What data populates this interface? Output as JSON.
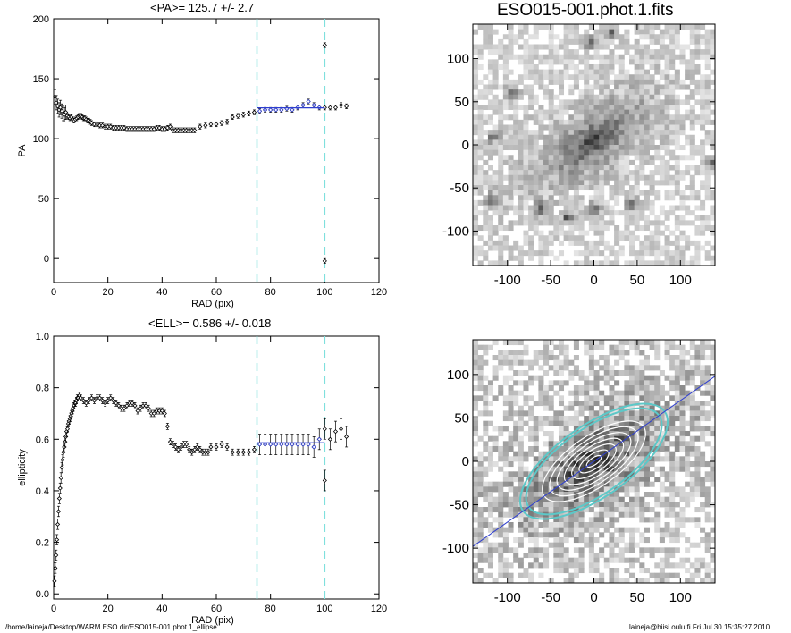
{
  "footer": {
    "left": "/home/laineja/Desktop/WARM.ESO.dir/ESO015-001.phot.1_ellipse",
    "right": "laineja@hiisi.oulu.fi  Fri Jul 30 15:35:27 2010"
  },
  "colors": {
    "fit_line": "#2f3fd0",
    "cyan_marker": "#7fe0dd",
    "contour_cyan": "#5cc8c8",
    "data": "#000000"
  },
  "chart_data": [
    {
      "type": "scatter",
      "id": "pa",
      "title": "<PA>= 125.7 +/-   2.7",
      "xlabel": "RAD (pix)",
      "ylabel": "PA",
      "xlim": [
        0,
        120
      ],
      "ylim": [
        -20,
        200
      ],
      "xticks": [
        0,
        20,
        40,
        60,
        80,
        100,
        120
      ],
      "yticks": [
        0,
        50,
        100,
        150,
        200
      ],
      "vlines": [
        75,
        100
      ],
      "fit": {
        "x": [
          75,
          100
        ],
        "y": [
          125.7,
          125.7
        ]
      },
      "points": [
        [
          0.5,
          135
        ],
        [
          1.0,
          130
        ],
        [
          1.5,
          127
        ],
        [
          2.0,
          124
        ],
        [
          2.5,
          126
        ],
        [
          3.0,
          123
        ],
        [
          3.5,
          121
        ],
        [
          4.0,
          120
        ],
        [
          4.5,
          122
        ],
        [
          5.0,
          119
        ],
        [
          5.5,
          118
        ],
        [
          6.0,
          117
        ],
        [
          6.5,
          118
        ],
        [
          7.0,
          116
        ],
        [
          7.5,
          115
        ],
        [
          8.0,
          116
        ],
        [
          8.5,
          117
        ],
        [
          9.0,
          118
        ],
        [
          9.5,
          119
        ],
        [
          10.0,
          119
        ],
        [
          10.5,
          118
        ],
        [
          11.0,
          117
        ],
        [
          11.5,
          117
        ],
        [
          12.0,
          116
        ],
        [
          12.5,
          115
        ],
        [
          13.0,
          115
        ],
        [
          13.5,
          114
        ],
        [
          14.0,
          113
        ],
        [
          15,
          112
        ],
        [
          16,
          112
        ],
        [
          17,
          111
        ],
        [
          18,
          111
        ],
        [
          19,
          110
        ],
        [
          20,
          110
        ],
        [
          21,
          110
        ],
        [
          22,
          109
        ],
        [
          23,
          109
        ],
        [
          24,
          109
        ],
        [
          25,
          109
        ],
        [
          26,
          109
        ],
        [
          27,
          108
        ],
        [
          28,
          108
        ],
        [
          29,
          108
        ],
        [
          30,
          108
        ],
        [
          31,
          108
        ],
        [
          32,
          108
        ],
        [
          33,
          108
        ],
        [
          34,
          108
        ],
        [
          35,
          108
        ],
        [
          36,
          108
        ],
        [
          37,
          108
        ],
        [
          38,
          109
        ],
        [
          39,
          109
        ],
        [
          40,
          108
        ],
        [
          41,
          108
        ],
        [
          42,
          109
        ],
        [
          43,
          110
        ],
        [
          44,
          107
        ],
        [
          45,
          107
        ],
        [
          46,
          107
        ],
        [
          47,
          107
        ],
        [
          48,
          107
        ],
        [
          49,
          107
        ],
        [
          50,
          107
        ],
        [
          51,
          107
        ],
        [
          52,
          107
        ],
        [
          54,
          110
        ],
        [
          56,
          111
        ],
        [
          58,
          112
        ],
        [
          60,
          112
        ],
        [
          62,
          113
        ],
        [
          64,
          114
        ],
        [
          66,
          118
        ],
        [
          68,
          119
        ],
        [
          70,
          120
        ],
        [
          72,
          121
        ],
        [
          74,
          122
        ],
        [
          76,
          123
        ],
        [
          78,
          124
        ],
        [
          80,
          124
        ],
        [
          82,
          124
        ],
        [
          84,
          124
        ],
        [
          86,
          125
        ],
        [
          88,
          124
        ],
        [
          90,
          126
        ],
        [
          92,
          128
        ],
        [
          94,
          131
        ],
        [
          96,
          128
        ],
        [
          98,
          126
        ],
        [
          100,
          126
        ],
        [
          100,
          178
        ],
        [
          100,
          -2
        ],
        [
          102,
          126
        ],
        [
          104,
          126
        ],
        [
          106,
          128
        ],
        [
          108,
          127
        ]
      ],
      "fit_points": [
        [
          76,
          123
        ],
        [
          78,
          124
        ],
        [
          80,
          124
        ],
        [
          82,
          124
        ],
        [
          84,
          124
        ],
        [
          86,
          125
        ],
        [
          88,
          124
        ],
        [
          90,
          126
        ],
        [
          92,
          128
        ],
        [
          94,
          131
        ],
        [
          96,
          128
        ],
        [
          98,
          126
        ]
      ]
    },
    {
      "type": "scatter",
      "id": "ell",
      "title": "<ELL>= 0.586 +/-  0.018",
      "xlabel": "RAD (pix)",
      "ylabel": "ellipticity",
      "xlim": [
        0,
        120
      ],
      "ylim": [
        -0.02,
        1.0
      ],
      "xticks": [
        0,
        20,
        40,
        60,
        80,
        100,
        120
      ],
      "yticks": [
        0.0,
        0.2,
        0.4,
        0.6,
        0.8,
        1.0
      ],
      "vlines": [
        75,
        100
      ],
      "fit": {
        "x": [
          75,
          100
        ],
        "y": [
          0.586,
          0.586
        ]
      },
      "points": [
        [
          0.3,
          0.05
        ],
        [
          0.6,
          0.1
        ],
        [
          0.9,
          0.15
        ],
        [
          1.2,
          0.21
        ],
        [
          1.5,
          0.27
        ],
        [
          1.8,
          0.32
        ],
        [
          2.1,
          0.37
        ],
        [
          2.4,
          0.41
        ],
        [
          2.7,
          0.45
        ],
        [
          3.0,
          0.49
        ],
        [
          3.3,
          0.52
        ],
        [
          3.6,
          0.55
        ],
        [
          3.9,
          0.57
        ],
        [
          4.2,
          0.59
        ],
        [
          4.5,
          0.61
        ],
        [
          4.8,
          0.63
        ],
        [
          5.1,
          0.64
        ],
        [
          5.4,
          0.66
        ],
        [
          5.7,
          0.67
        ],
        [
          6.0,
          0.68
        ],
        [
          6.3,
          0.69
        ],
        [
          6.6,
          0.7
        ],
        [
          6.9,
          0.71
        ],
        [
          7.2,
          0.72
        ],
        [
          7.5,
          0.73
        ],
        [
          7.8,
          0.74
        ],
        [
          8.1,
          0.74
        ],
        [
          8.4,
          0.75
        ],
        [
          8.7,
          0.76
        ],
        [
          9.0,
          0.76
        ],
        [
          9.5,
          0.77
        ],
        [
          10,
          0.76
        ],
        [
          11,
          0.75
        ],
        [
          12,
          0.74
        ],
        [
          13,
          0.75
        ],
        [
          14,
          0.76
        ],
        [
          15,
          0.75
        ],
        [
          16,
          0.76
        ],
        [
          17,
          0.76
        ],
        [
          18,
          0.75
        ],
        [
          19,
          0.74
        ],
        [
          20,
          0.75
        ],
        [
          21,
          0.76
        ],
        [
          22,
          0.75
        ],
        [
          23,
          0.74
        ],
        [
          24,
          0.73
        ],
        [
          25,
          0.72
        ],
        [
          26,
          0.72
        ],
        [
          27,
          0.73
        ],
        [
          28,
          0.74
        ],
        [
          29,
          0.74
        ],
        [
          30,
          0.73
        ],
        [
          31,
          0.71
        ],
        [
          32,
          0.72
        ],
        [
          33,
          0.73
        ],
        [
          34,
          0.73
        ],
        [
          35,
          0.72
        ],
        [
          36,
          0.7
        ],
        [
          37,
          0.7
        ],
        [
          38,
          0.71
        ],
        [
          39,
          0.71
        ],
        [
          40,
          0.71
        ],
        [
          41,
          0.7
        ],
        [
          42,
          0.65
        ],
        [
          43,
          0.59
        ],
        [
          44,
          0.58
        ],
        [
          45,
          0.57
        ],
        [
          46,
          0.56
        ],
        [
          47,
          0.57
        ],
        [
          48,
          0.58
        ],
        [
          49,
          0.58
        ],
        [
          50,
          0.56
        ],
        [
          51,
          0.55
        ],
        [
          52,
          0.56
        ],
        [
          53,
          0.57
        ],
        [
          54,
          0.56
        ],
        [
          55,
          0.55
        ],
        [
          56,
          0.55
        ],
        [
          57,
          0.55
        ],
        [
          58,
          0.57
        ],
        [
          60,
          0.57
        ],
        [
          62,
          0.58
        ],
        [
          64,
          0.57
        ],
        [
          66,
          0.55
        ],
        [
          68,
          0.55
        ],
        [
          70,
          0.55
        ],
        [
          72,
          0.55
        ],
        [
          74,
          0.56
        ],
        [
          76,
          0.58
        ],
        [
          78,
          0.58
        ],
        [
          80,
          0.58
        ],
        [
          82,
          0.58
        ],
        [
          84,
          0.58
        ],
        [
          86,
          0.58
        ],
        [
          88,
          0.58
        ],
        [
          90,
          0.58
        ],
        [
          92,
          0.58
        ],
        [
          94,
          0.58
        ],
        [
          96,
          0.57
        ],
        [
          98,
          0.6
        ],
        [
          100,
          0.64
        ],
        [
          100,
          0.44
        ],
        [
          102,
          0.6
        ],
        [
          104,
          0.63
        ],
        [
          106,
          0.64
        ],
        [
          108,
          0.61
        ]
      ],
      "fit_points": [
        [
          76,
          0.58
        ],
        [
          78,
          0.58
        ],
        [
          80,
          0.58
        ],
        [
          82,
          0.58
        ],
        [
          84,
          0.58
        ],
        [
          86,
          0.58
        ],
        [
          88,
          0.58
        ],
        [
          90,
          0.58
        ],
        [
          92,
          0.58
        ],
        [
          94,
          0.58
        ],
        [
          96,
          0.57
        ],
        [
          98,
          0.6
        ]
      ]
    },
    {
      "type": "heatmap",
      "id": "image_top",
      "title": "ESO015-001.phot.1.fits",
      "xlim": [
        -140,
        140
      ],
      "ylim": [
        -140,
        140
      ],
      "xticks": [
        -100,
        -50,
        0,
        50,
        100
      ],
      "yticks": [
        -100,
        -50,
        0,
        50,
        100
      ],
      "galaxy": {
        "center": [
          0,
          5
        ],
        "pa_deg": 35,
        "semi_major": 80,
        "axis_ratio": 0.41
      },
      "stars": [
        [
          -5,
          120
        ],
        [
          -60,
          -75
        ],
        [
          0,
          -75
        ],
        [
          -115,
          10
        ],
        [
          135,
          -20
        ],
        [
          -30,
          -85
        ],
        [
          45,
          -70
        ],
        [
          -120,
          -65
        ],
        [
          20,
          130
        ],
        [
          -95,
          60
        ]
      ]
    },
    {
      "type": "heatmap",
      "id": "image_bottom",
      "title": "",
      "xlim": [
        -140,
        140
      ],
      "ylim": [
        -140,
        140
      ],
      "xticks": [
        -100,
        -50,
        0,
        50,
        100
      ],
      "yticks": [
        -100,
        -50,
        0,
        50,
        100
      ],
      "pa_line": {
        "from": [
          -140,
          -98
        ],
        "to": [
          140,
          98
        ]
      },
      "ellipses": {
        "center": [
          0,
          0
        ],
        "pa_deg": 35,
        "ell": 0.586,
        "outer_cyan_a": [
          100,
          92
        ],
        "inner_white_a": [
          10,
          20,
          30,
          40,
          50,
          60,
          70
        ]
      }
    }
  ]
}
